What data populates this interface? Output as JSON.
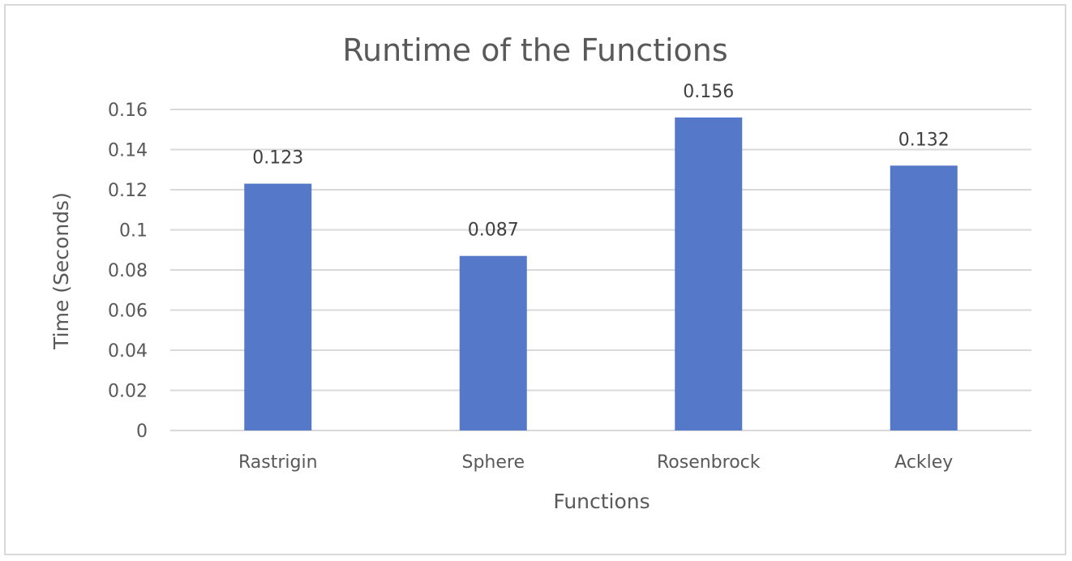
{
  "chart_data": {
    "type": "bar",
    "title": "Runtime of the Functions",
    "xlabel": "Functions",
    "ylabel": "Time (Seconds)",
    "categories": [
      "Rastrigin",
      "Sphere",
      "Rosenbrock",
      "Ackley"
    ],
    "values": [
      0.123,
      0.087,
      0.156,
      0.132
    ],
    "data_labels": [
      "0.123",
      "0.087",
      "0.156",
      "0.132"
    ],
    "ylim": [
      0,
      0.16
    ],
    "yticks": [
      0,
      0.02,
      0.04,
      0.06,
      0.08,
      0.1,
      0.12,
      0.14,
      0.16
    ],
    "ytick_labels": [
      "0",
      "0.02",
      "0.04",
      "0.06",
      "0.08",
      "0.1",
      "0.12",
      "0.14",
      "0.16"
    ],
    "grid": true,
    "legend": "none",
    "bar_color": "#5578c8"
  }
}
